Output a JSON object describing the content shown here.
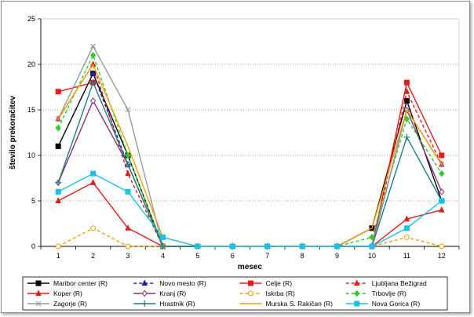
{
  "chart_data": {
    "type": "line",
    "title": "",
    "xlabel": "mesec",
    "ylabel": "število prekoračitev",
    "x": [
      1,
      2,
      3,
      4,
      5,
      6,
      7,
      8,
      9,
      10,
      11,
      12
    ],
    "x_tick_labels": [
      "1",
      "2",
      "3",
      "4",
      "5",
      "6",
      "7",
      "8",
      "9",
      "10",
      "11",
      "12"
    ],
    "ylim": [
      0,
      25
    ],
    "y_ticks": [
      0,
      5,
      10,
      15,
      20,
      25
    ],
    "y_tick_labels": [
      "0",
      "5",
      "10",
      "15",
      "20",
      "25"
    ],
    "grid": "horizontal-dotted",
    "legend_position": "bottom",
    "series": [
      {
        "name": "Maribor center (R)",
        "color": "#000000",
        "dash": "solid",
        "marker": "square",
        "values": [
          11,
          19,
          10,
          0,
          0,
          0,
          0,
          0,
          0,
          2,
          16,
          5
        ]
      },
      {
        "name": "Novo mesto (R)",
        "color": "#1f1fa8",
        "dash": "dash",
        "marker": "triangle",
        "values": [
          null,
          19,
          9,
          0,
          0,
          0,
          0,
          0,
          0,
          0,
          15,
          9
        ]
      },
      {
        "name": "Celje (R)",
        "color": "#e41a1c",
        "dash": "solid",
        "marker": "square",
        "values": [
          17,
          18,
          null,
          0,
          0,
          0,
          0,
          0,
          0,
          0,
          18,
          10
        ]
      },
      {
        "name": "Ljubljana Bežigrad",
        "color": "#e41a1c",
        "dash": "dash",
        "marker": "triangle",
        "values": [
          14,
          20,
          8,
          0,
          0,
          0,
          0,
          0,
          0,
          0,
          17,
          9
        ]
      },
      {
        "name": "Koper (R)",
        "color": "#e41a1c",
        "dash": "solid",
        "marker": "triangle",
        "values": [
          5,
          7,
          2,
          0,
          0,
          0,
          0,
          0,
          0,
          0,
          3,
          4
        ]
      },
      {
        "name": "Kranj (R)",
        "color": "#8b2f7d",
        "dash": "solid",
        "marker": "diamond-open",
        "values": [
          7,
          16,
          9,
          0,
          0,
          0,
          0,
          0,
          0,
          0,
          15,
          6
        ]
      },
      {
        "name": "Iskrba (R)",
        "color": "#ff9900",
        "dash": "dash",
        "marker": "circle-open",
        "values": [
          0,
          2,
          0,
          0,
          0,
          0,
          0,
          0,
          0,
          0,
          1,
          0
        ]
      },
      {
        "name": "Trbovlje (R)",
        "color": "#2ecc2e",
        "dash": "dash",
        "marker": "diamond",
        "values": [
          13,
          21,
          10,
          0,
          0,
          0,
          0,
          0,
          0,
          1,
          14,
          8
        ]
      },
      {
        "name": "Zagorje (R)",
        "color": "#999999",
        "dash": "solid",
        "marker": "cross",
        "values": [
          14,
          22,
          15,
          0,
          0,
          0,
          0,
          0,
          0,
          0,
          15,
          9
        ]
      },
      {
        "name": "Hrastnik (R)",
        "color": "#1b7f7f",
        "dash": "solid",
        "marker": "plus",
        "values": [
          7,
          18,
          9,
          0,
          0,
          0,
          0,
          0,
          0,
          0,
          12,
          5
        ]
      },
      {
        "name": "Murska S. Rakičan (R)",
        "color": "#f0a000",
        "dash": "solid",
        "marker": "none",
        "values": [
          14,
          20,
          11,
          1,
          0,
          0,
          0,
          0,
          0,
          2,
          15,
          9
        ]
      },
      {
        "name": "Nova Gorica (R)",
        "color": "#17c3e8",
        "dash": "solid",
        "marker": "square",
        "values": [
          6,
          8,
          6,
          1,
          0,
          0,
          0,
          0,
          0,
          0,
          2,
          5
        ]
      }
    ]
  }
}
